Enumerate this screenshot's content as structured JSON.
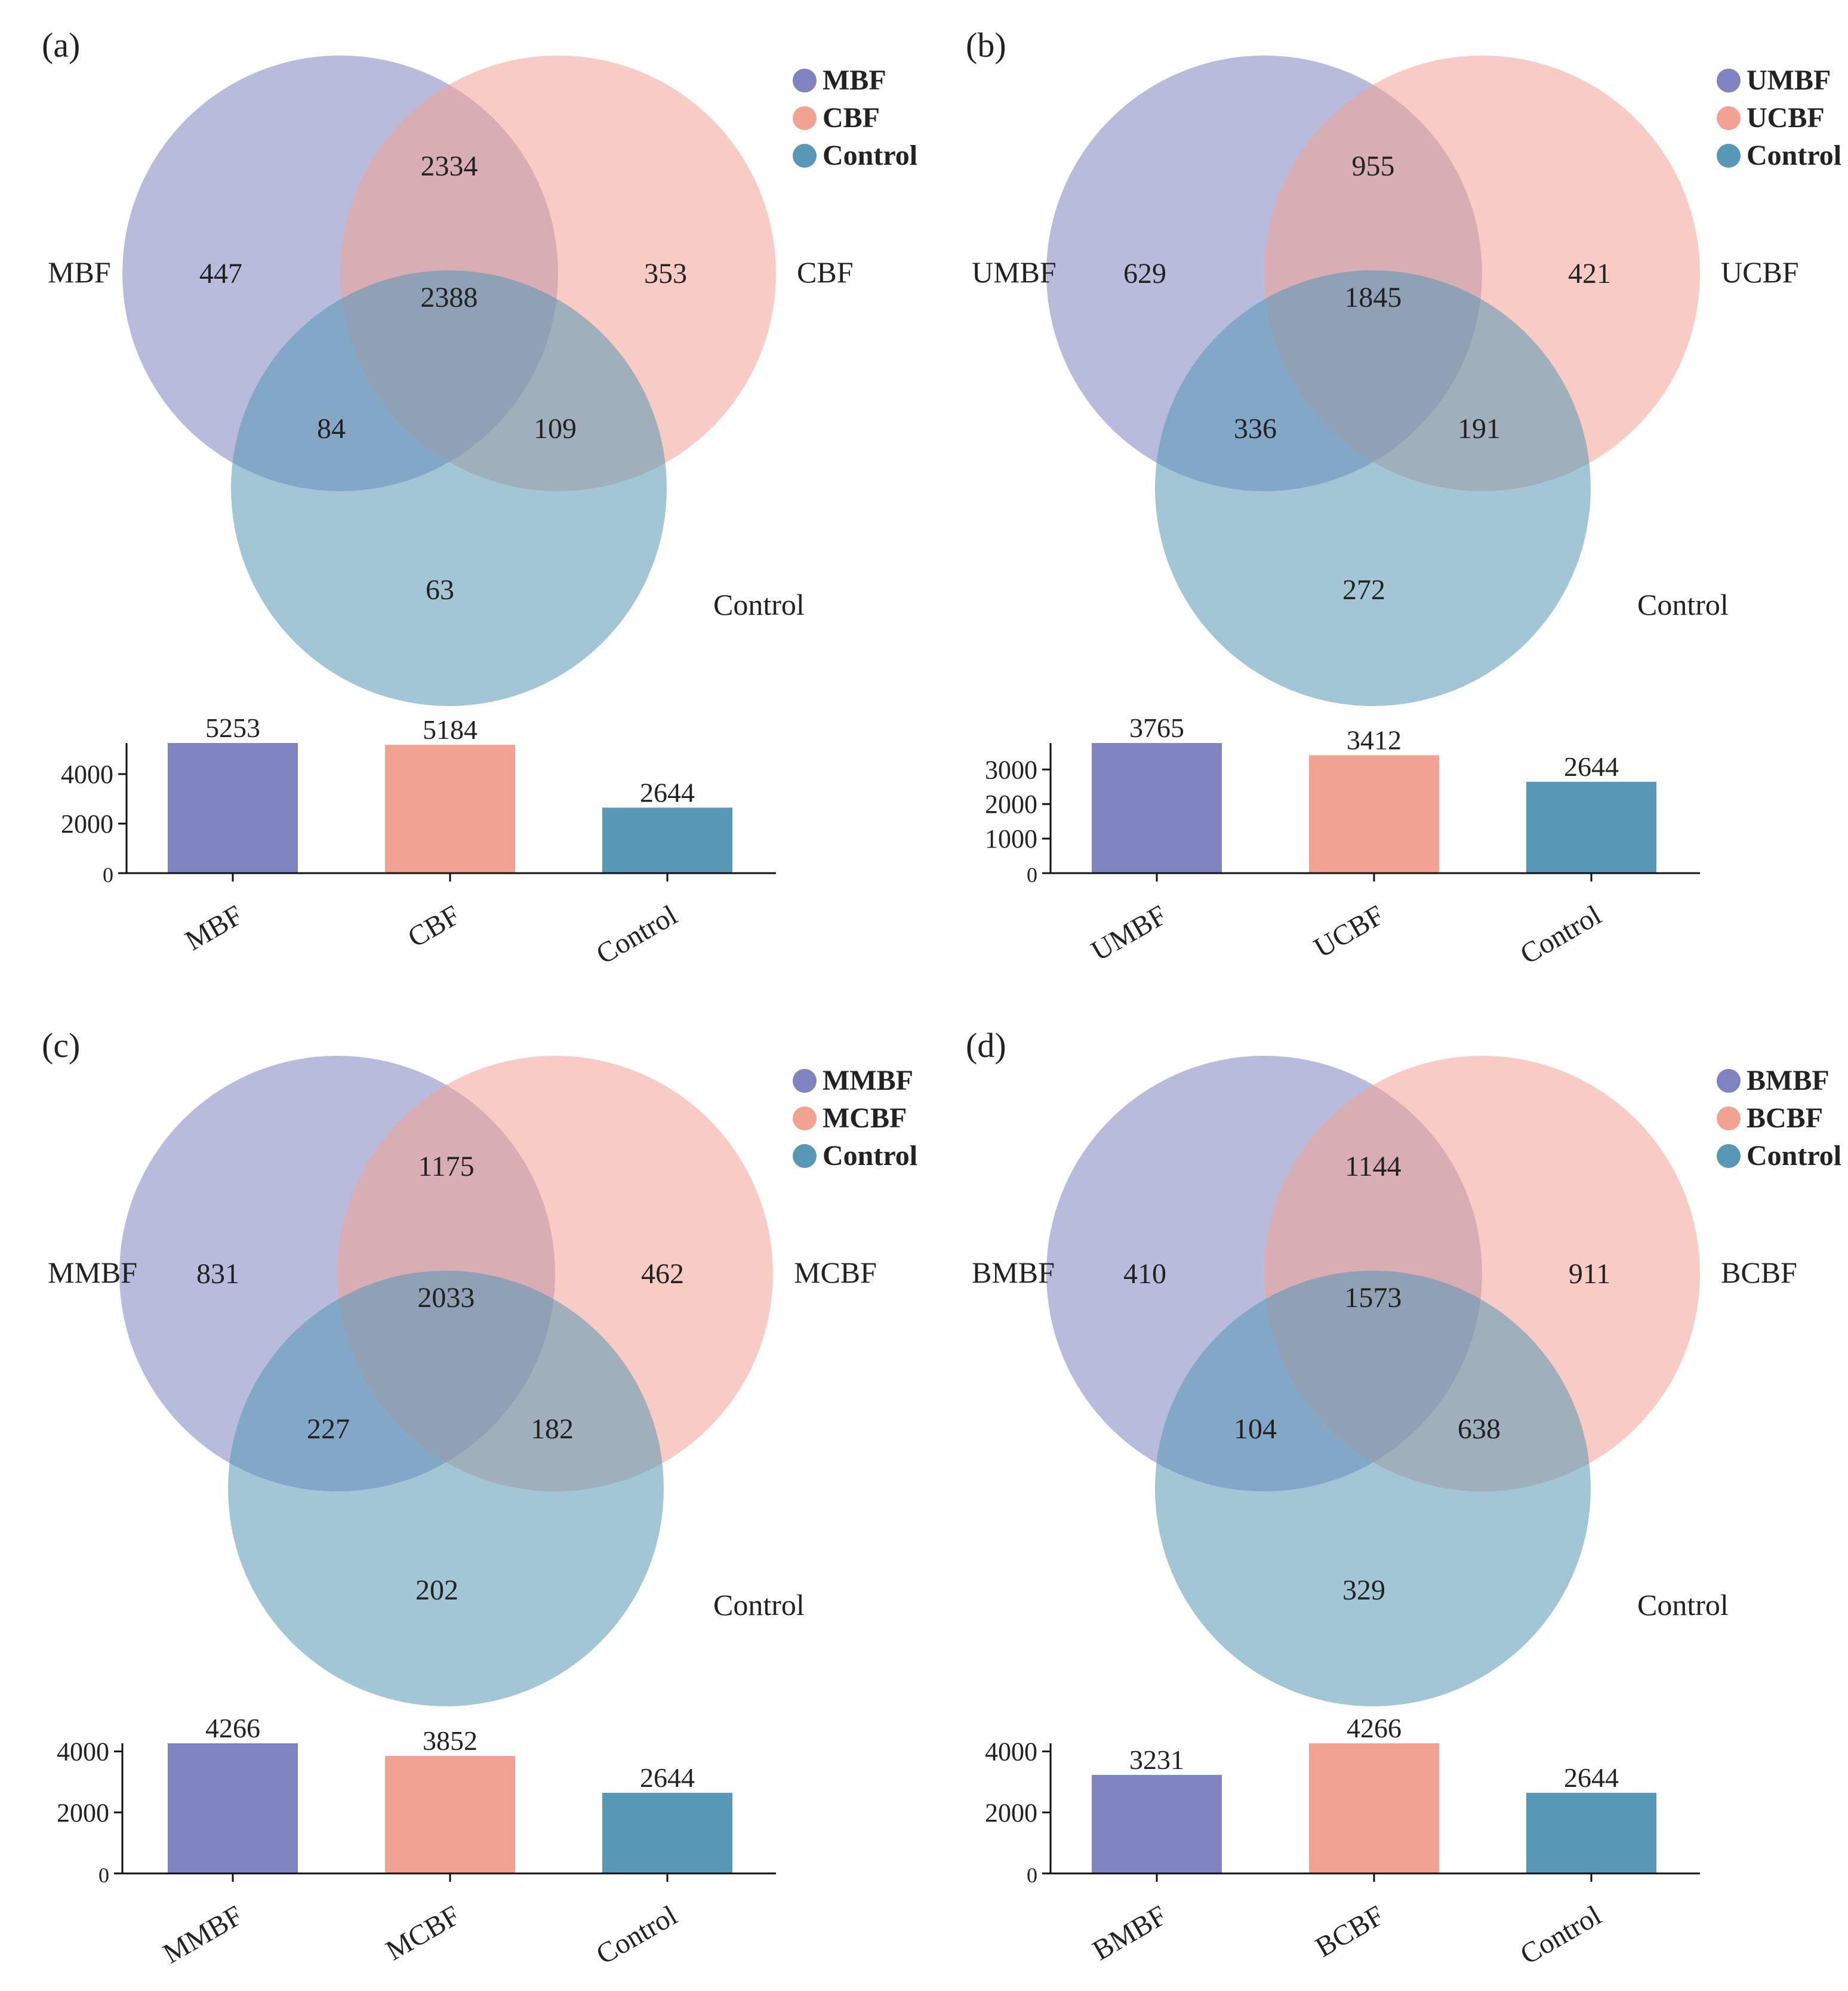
{
  "colors": {
    "set1": "#7f83bf",
    "set2": "#f2a293",
    "set3": "#5798b7",
    "axis": "#111111",
    "text": "#222222"
  },
  "chart_data": [
    {
      "panel": "(a)",
      "type": "venn",
      "sets": [
        "MBF",
        "CBF",
        "Control"
      ],
      "legend": [
        "MBF",
        "CBF",
        "Control"
      ],
      "regions": {
        "only_1": 447,
        "only_2": 353,
        "only_3": 63,
        "1_2": 2334,
        "1_3": 84,
        "2_3": 109,
        "all": 2388
      },
      "bars": {
        "type": "bar",
        "categories": [
          "MBF",
          "CBF",
          "Control"
        ],
        "values": [
          5253,
          5184,
          2644
        ],
        "ylim": [
          0,
          5253
        ],
        "yticks": [
          0,
          2000,
          4000
        ]
      }
    },
    {
      "panel": "(b)",
      "type": "venn",
      "sets": [
        "UMBF",
        "UCBF",
        "Control"
      ],
      "legend": [
        "UMBF",
        "UCBF",
        "Control"
      ],
      "regions": {
        "only_1": 629,
        "only_2": 421,
        "only_3": 272,
        "1_2": 955,
        "1_3": 336,
        "2_3": 191,
        "all": 1845
      },
      "bars": {
        "type": "bar",
        "categories": [
          "UMBF",
          "UCBF",
          "Control"
        ],
        "values": [
          3765,
          3412,
          2644
        ],
        "ylim": [
          0,
          3765
        ],
        "yticks": [
          0,
          1000,
          2000,
          3000
        ]
      }
    },
    {
      "panel": "(c)",
      "type": "venn",
      "sets": [
        "MMBF",
        "MCBF",
        "Control"
      ],
      "legend": [
        "MMBF",
        "MCBF",
        "Control"
      ],
      "regions": {
        "only_1": 831,
        "only_2": 462,
        "only_3": 202,
        "1_2": 1175,
        "1_3": 227,
        "2_3": 182,
        "all": 2033
      },
      "bars": {
        "type": "bar",
        "categories": [
          "MMBF",
          "MCBF",
          "Control"
        ],
        "values": [
          4266,
          3852,
          2644
        ],
        "ylim": [
          0,
          4266
        ],
        "yticks": [
          0,
          2000,
          4000
        ]
      }
    },
    {
      "panel": "(d)",
      "type": "venn",
      "sets": [
        "BMBF",
        "BCBF",
        "Control"
      ],
      "legend": [
        "BMBF",
        "BCBF",
        "Control"
      ],
      "regions": {
        "only_1": 410,
        "only_2": 911,
        "only_3": 329,
        "1_2": 1144,
        "1_3": 104,
        "2_3": 638,
        "all": 1573
      },
      "bars": {
        "type": "bar",
        "categories": [
          "BMBF",
          "BCBF",
          "Control"
        ],
        "values": [
          3231,
          4266,
          2644
        ],
        "ylim": [
          0,
          4266
        ],
        "yticks": [
          0,
          2000,
          4000
        ]
      }
    }
  ]
}
